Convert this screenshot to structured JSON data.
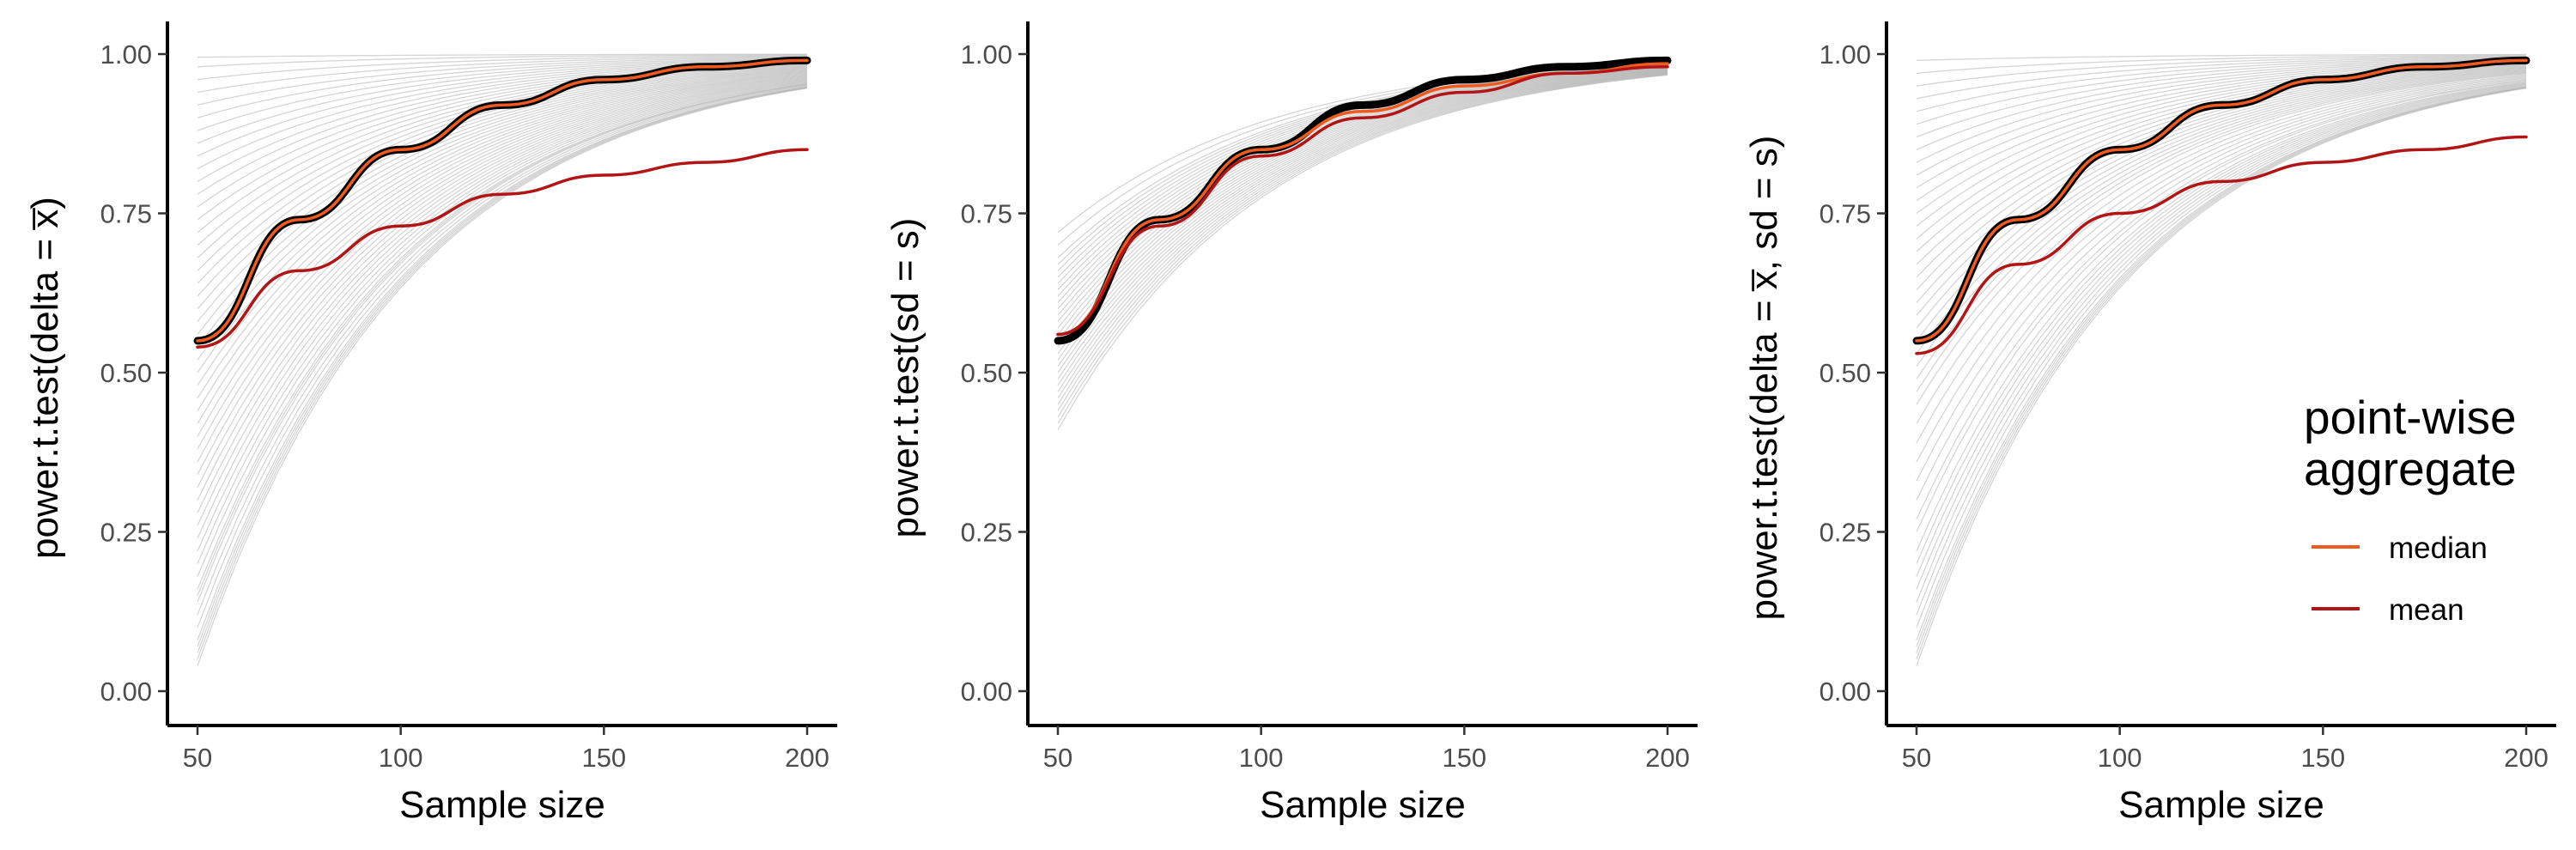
{
  "chart_data": [
    {
      "type": "line",
      "xlabel": "Sample size",
      "ylabel": "power.t.test(delta = x̅)",
      "xlim": [
        50,
        200
      ],
      "ylim": [
        0,
        1
      ],
      "x_ticks": [
        50,
        100,
        150,
        200
      ],
      "y_ticks": [
        "0.00",
        "0.25",
        "0.50",
        "0.75",
        "1.00"
      ],
      "grid": false,
      "x": [
        50,
        75,
        100,
        125,
        150,
        175,
        200
      ],
      "series": [
        {
          "role": "black",
          "values": [
            0.55,
            0.74,
            0.85,
            0.92,
            0.96,
            0.98,
            0.99
          ]
        },
        {
          "role": "median",
          "values": [
            0.55,
            0.74,
            0.85,
            0.92,
            0.96,
            0.98,
            0.99
          ]
        },
        {
          "role": "mean",
          "values": [
            0.54,
            0.66,
            0.73,
            0.78,
            0.81,
            0.83,
            0.85
          ]
        }
      ],
      "background_curves": [
        0.995,
        0.98,
        0.96,
        0.94,
        0.92,
        0.9,
        0.88,
        0.86,
        0.84,
        0.82,
        0.8,
        0.78,
        0.76,
        0.74,
        0.72,
        0.7,
        0.68,
        0.66,
        0.64,
        0.62,
        0.6,
        0.58,
        0.56,
        0.54,
        0.52,
        0.5,
        0.48,
        0.46,
        0.44,
        0.42,
        0.4,
        0.38,
        0.36,
        0.34,
        0.32,
        0.3,
        0.28,
        0.26,
        0.24,
        0.22,
        0.2,
        0.18,
        0.16,
        0.15,
        0.14,
        0.12,
        0.1,
        0.08,
        0.07,
        0.06,
        0.05,
        0.04
      ]
    },
    {
      "type": "line",
      "xlabel": "Sample size",
      "ylabel": "power.t.test(sd = s)",
      "xlim": [
        50,
        200
      ],
      "ylim": [
        0,
        1
      ],
      "x_ticks": [
        50,
        100,
        150,
        200
      ],
      "y_ticks": [
        "0.00",
        "0.25",
        "0.50",
        "0.75",
        "1.00"
      ],
      "grid": false,
      "x": [
        50,
        75,
        100,
        125,
        150,
        175,
        200
      ],
      "series": [
        {
          "role": "black",
          "values": [
            0.55,
            0.74,
            0.85,
            0.92,
            0.96,
            0.98,
            0.99
          ]
        },
        {
          "role": "median",
          "values": [
            0.56,
            0.74,
            0.85,
            0.91,
            0.95,
            0.97,
            0.985
          ]
        },
        {
          "role": "mean",
          "values": [
            0.56,
            0.73,
            0.84,
            0.9,
            0.94,
            0.97,
            0.98
          ]
        }
      ],
      "background_curves": [
        0.72,
        0.7,
        0.68,
        0.67,
        0.66,
        0.65,
        0.64,
        0.63,
        0.62,
        0.61,
        0.6,
        0.59,
        0.58,
        0.57,
        0.56,
        0.55,
        0.54,
        0.53,
        0.52,
        0.51,
        0.5,
        0.49,
        0.48,
        0.47,
        0.46,
        0.45,
        0.44,
        0.43,
        0.42,
        0.41
      ]
    },
    {
      "type": "line",
      "xlabel": "Sample size",
      "ylabel": "power.t.test(delta = x̅,  sd = s)",
      "xlim": [
        50,
        200
      ],
      "ylim": [
        0,
        1
      ],
      "x_ticks": [
        50,
        100,
        150,
        200
      ],
      "y_ticks": [
        "0.00",
        "0.25",
        "0.50",
        "0.75",
        "1.00"
      ],
      "grid": false,
      "x": [
        50,
        75,
        100,
        125,
        150,
        175,
        200
      ],
      "series": [
        {
          "role": "black",
          "values": [
            0.55,
            0.74,
            0.85,
            0.92,
            0.96,
            0.98,
            0.99
          ]
        },
        {
          "role": "median",
          "values": [
            0.55,
            0.74,
            0.85,
            0.92,
            0.96,
            0.98,
            0.99
          ]
        },
        {
          "role": "mean",
          "values": [
            0.53,
            0.67,
            0.75,
            0.8,
            0.83,
            0.85,
            0.87
          ]
        }
      ],
      "background_curves": [
        0.99,
        0.97,
        0.95,
        0.93,
        0.91,
        0.89,
        0.87,
        0.85,
        0.83,
        0.81,
        0.79,
        0.77,
        0.75,
        0.73,
        0.71,
        0.69,
        0.67,
        0.65,
        0.63,
        0.61,
        0.59,
        0.57,
        0.55,
        0.53,
        0.51,
        0.49,
        0.47,
        0.45,
        0.42,
        0.39,
        0.36,
        0.33,
        0.3,
        0.27,
        0.25,
        0.22,
        0.2,
        0.18,
        0.16,
        0.14,
        0.12,
        0.1,
        0.08,
        0.07,
        0.06,
        0.05,
        0.04
      ]
    }
  ],
  "legend": {
    "title_line1": "point-wise",
    "title_line2": "aggregate",
    "items": [
      {
        "label": "median",
        "color": "#ee5a1f"
      },
      {
        "label": "mean",
        "color": "#b21515"
      }
    ],
    "placement": "bottom-right of third panel"
  },
  "colors": {
    "median": "#ee5a1f",
    "mean": "#b21515",
    "black": "#000000",
    "background_curve": "#b3b3b3",
    "axis": "#000000"
  }
}
